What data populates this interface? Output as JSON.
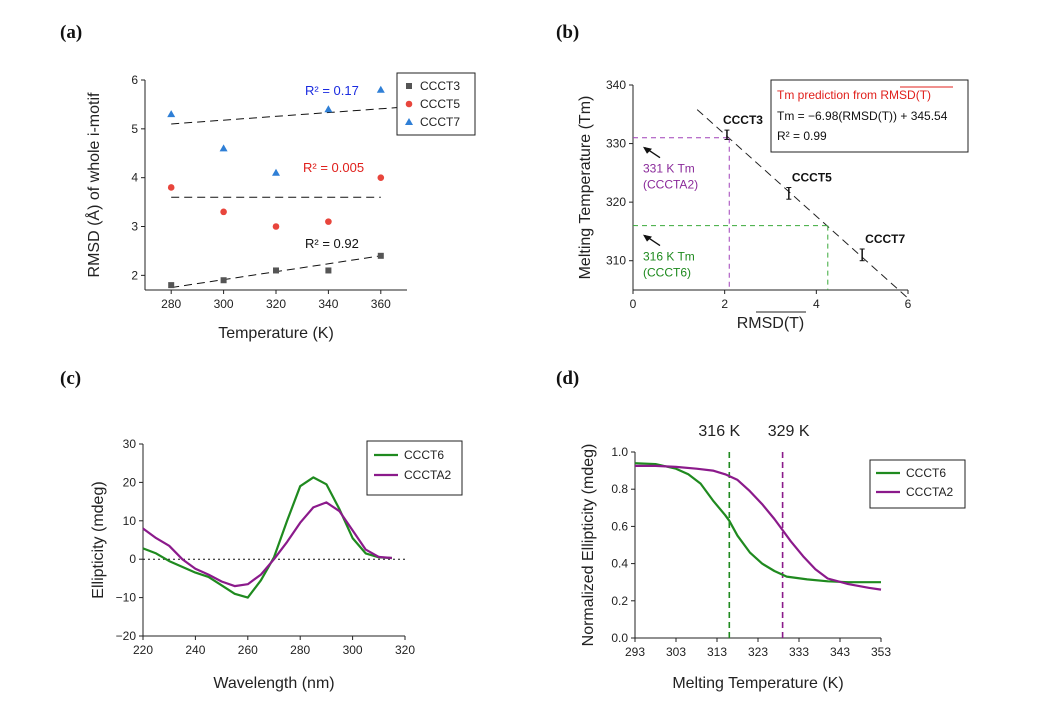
{
  "panels": {
    "a": "(a)",
    "b": "(b)",
    "c": "(c)",
    "d": "(d)"
  },
  "chart_data": [
    {
      "type": "scatter",
      "xlabel": "Temperature (K)",
      "ylabel": "RMSD (Å) of whole i-motif",
      "xlim": [
        270,
        370
      ],
      "ylim": [
        1.7,
        6.0
      ],
      "xticks": [
        280,
        300,
        320,
        340,
        360
      ],
      "yticks": [
        2,
        3,
        4,
        5,
        6
      ],
      "legend_position": "top-right",
      "series": [
        {
          "name": "CCCT3",
          "marker": "square",
          "color": "#555555",
          "x": [
            280,
            300,
            320,
            340,
            360
          ],
          "y": [
            1.8,
            1.9,
            2.1,
            2.1,
            2.4
          ],
          "fit": {
            "x": [
              280,
              360
            ],
            "y": [
              1.75,
              2.4
            ]
          },
          "r2": "R² = 0.92",
          "r2_color": "#111111"
        },
        {
          "name": "CCCT5",
          "marker": "circle",
          "color": "#e8453c",
          "x": [
            280,
            300,
            320,
            340,
            360
          ],
          "y": [
            3.8,
            3.3,
            3.0,
            3.1,
            4.0
          ],
          "fit": {
            "x": [
              280,
              360
            ],
            "y": [
              3.6,
              3.6
            ]
          },
          "r2": "R² = 0.005",
          "r2_color": "#e0201c"
        },
        {
          "name": "CCCT7",
          "marker": "triangle",
          "color": "#2f7fd6",
          "x": [
            280,
            300,
            320,
            340,
            360
          ],
          "y": [
            5.3,
            4.6,
            4.1,
            5.4,
            5.8
          ],
          "fit": {
            "x": [
              280,
              370
            ],
            "y": [
              5.1,
              5.45
            ]
          },
          "r2": "R² = 0.17",
          "r2_color": "#1a2be0"
        }
      ]
    },
    {
      "type": "scatter",
      "xlabel": "RMSD(T)",
      "ylabel": "Melting Temperature (Tm)",
      "xlim": [
        0,
        6
      ],
      "ylim": [
        305,
        340
      ],
      "xticks": [
        0,
        2,
        4,
        6
      ],
      "yticks": [
        310,
        320,
        330,
        340
      ],
      "points": [
        {
          "label": "CCCT3",
          "x": 2.05,
          "y": 331.5,
          "err": 0.8
        },
        {
          "label": "CCCT5",
          "x": 3.4,
          "y": 321.5,
          "err": 1.0
        },
        {
          "label": "CCCT7",
          "x": 5.0,
          "y": 311.0,
          "err": 1.0
        }
      ],
      "fit": {
        "x": [
          1.4,
          6.0
        ],
        "y": [
          335.8,
          303.6
        ]
      },
      "box": {
        "title": "Tm prediction from RMSD(T)",
        "title_color": "#e0201c",
        "equation": "Tm = −6.98(RMSD(T)) + 345.54",
        "r2": "R² = 0.99"
      },
      "guides": [
        {
          "x": 2.1,
          "y": 331,
          "color": "#a040b8",
          "text1": "331 K Tm",
          "text2": "(CCCTA2)",
          "text_color": "#8a2a9a"
        },
        {
          "x": 4.25,
          "y": 316,
          "color": "#3aaa3a",
          "text1": "316 K Tm",
          "text2": "(CCCT6)",
          "text_color": "#1e8a1e"
        }
      ]
    },
    {
      "type": "line",
      "xlabel": "Wavelength (nm)",
      "ylabel": "Ellipticity  (mdeg)",
      "xlim": [
        220,
        320
      ],
      "ylim": [
        -20,
        30
      ],
      "xticks": [
        220,
        240,
        260,
        280,
        300,
        320
      ],
      "yticks": [
        -20,
        -10,
        0,
        10,
        20,
        30
      ],
      "legend_position": "top-right",
      "series": [
        {
          "name": "CCCT6",
          "color": "#1f8a1f",
          "x": [
            220,
            225,
            230,
            235,
            240,
            245,
            250,
            255,
            260,
            265,
            270,
            275,
            280,
            285,
            290,
            295,
            300,
            305,
            310,
            315
          ],
          "y": [
            2.8,
            1.5,
            -0.5,
            -2.0,
            -3.5,
            -4.6,
            -6.8,
            -9.0,
            -10.0,
            -5.5,
            0.5,
            10.0,
            19.0,
            21.3,
            19.5,
            13.0,
            5.5,
            1.5,
            0.5,
            0.3
          ]
        },
        {
          "name": "CCCTA2",
          "color": "#8b1a8b",
          "x": [
            220,
            225,
            230,
            235,
            240,
            245,
            250,
            255,
            260,
            265,
            270,
            275,
            280,
            285,
            290,
            295,
            300,
            305,
            310,
            315
          ],
          "y": [
            8.0,
            5.5,
            3.5,
            0.0,
            -2.5,
            -4.0,
            -5.8,
            -7.0,
            -6.5,
            -4.0,
            0.0,
            4.5,
            9.5,
            13.5,
            14.8,
            12.5,
            7.5,
            2.5,
            0.6,
            0.3
          ]
        }
      ]
    },
    {
      "type": "line",
      "xlabel": "Melting Temperature (K)",
      "ylabel": "Normalized Ellipticity (mdeg)",
      "xlim": [
        293,
        353
      ],
      "ylim": [
        0,
        1.0
      ],
      "xticks": [
        293,
        303,
        313,
        323,
        333,
        343,
        353
      ],
      "yticks": [
        0.0,
        0.2,
        0.4,
        0.6,
        0.8,
        1.0
      ],
      "legend_position": "top-right",
      "series": [
        {
          "name": "CCCT6",
          "color": "#1f8a1f",
          "x": [
            293,
            298,
            303,
            306,
            309,
            312,
            315,
            316,
            318,
            321,
            324,
            327,
            330,
            335,
            340,
            345,
            353
          ],
          "y": [
            0.94,
            0.935,
            0.91,
            0.88,
            0.83,
            0.74,
            0.66,
            0.63,
            0.55,
            0.46,
            0.4,
            0.36,
            0.33,
            0.315,
            0.305,
            0.3,
            0.3
          ]
        },
        {
          "name": "CCCTA2",
          "color": "#8b1a8b",
          "x": [
            293,
            298,
            303,
            308,
            312,
            315,
            318,
            321,
            324,
            327,
            329,
            331,
            334,
            337,
            340,
            345,
            350,
            353
          ],
          "y": [
            0.925,
            0.925,
            0.92,
            0.91,
            0.9,
            0.88,
            0.85,
            0.79,
            0.72,
            0.64,
            0.58,
            0.52,
            0.44,
            0.37,
            0.32,
            0.29,
            0.27,
            0.26
          ]
        }
      ],
      "vlines": [
        {
          "x": 316,
          "color": "#1f8a1f",
          "label": "316 K"
        },
        {
          "x": 329,
          "color": "#8b1a8b",
          "label": "329 K"
        }
      ]
    }
  ]
}
